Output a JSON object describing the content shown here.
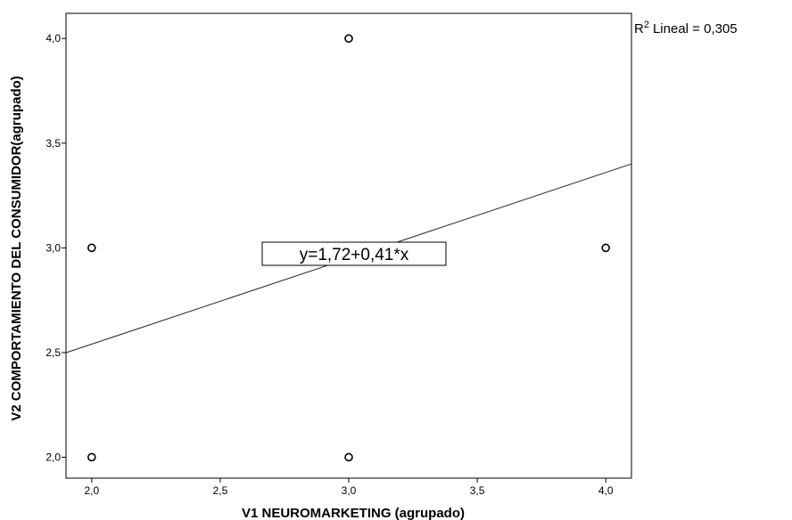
{
  "chart_data": {
    "type": "scatter",
    "xlabel": "V1 NEUROMARKETING (agrupado)",
    "ylabel": "V2 COMPORTAMIENTO DEL CONSUMIDOR(agrupado)",
    "xlim": [
      1.9,
      4.1
    ],
    "ylim": [
      1.9,
      4.12
    ],
    "x_ticks": [
      "2,0",
      "2,5",
      "3,0",
      "3,5",
      "4,0"
    ],
    "x_tick_values": [
      2.0,
      2.5,
      3.0,
      3.5,
      4.0
    ],
    "y_ticks": [
      "2,0",
      "2,5",
      "3,0",
      "3,5",
      "4,0"
    ],
    "y_tick_values": [
      2.0,
      2.5,
      3.0,
      3.5,
      4.0
    ],
    "points": [
      {
        "x": 2.0,
        "y": 3.0
      },
      {
        "x": 2.0,
        "y": 2.0
      },
      {
        "x": 3.0,
        "y": 4.0
      },
      {
        "x": 3.0,
        "y": 3.0
      },
      {
        "x": 3.0,
        "y": 2.0
      },
      {
        "x": 4.0,
        "y": 3.0
      }
    ],
    "fit_line": {
      "intercept": 1.72,
      "slope": 0.41
    },
    "equation_label": "y=1,72+0,41*x",
    "r2_label": "Lineal = 0,305",
    "grid": false
  }
}
